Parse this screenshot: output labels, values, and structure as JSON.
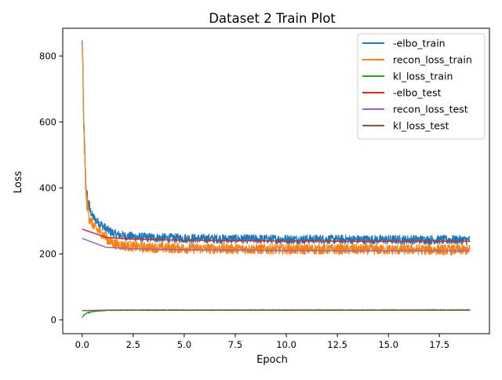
{
  "chart_data": {
    "type": "line",
    "title": "Dataset 2 Train Plot",
    "xlabel": "Epoch",
    "ylabel": "Loss",
    "xlim": [
      -0.95,
      19.95
    ],
    "ylim": [
      -42,
      884
    ],
    "xticks": [
      0.0,
      2.5,
      5.0,
      7.5,
      10.0,
      12.5,
      15.0,
      17.5
    ],
    "xtick_labels": [
      "0.0",
      "2.5",
      "5.0",
      "7.5",
      "10.0",
      "12.5",
      "15.0",
      "17.5"
    ],
    "yticks": [
      0,
      200,
      400,
      600,
      800
    ],
    "ytick_labels": [
      "0",
      "200",
      "400",
      "600",
      "800"
    ],
    "grid": false,
    "legend_position": "top-right",
    "series": [
      {
        "name": "-elbo_train",
        "color": "#1f77b4",
        "noise": 14,
        "x": [
          0,
          0.03,
          0.06,
          0.1,
          0.15,
          0.2,
          0.3,
          0.4,
          0.5,
          0.7,
          1.0,
          1.3,
          1.6,
          2.0,
          2.5,
          3.0,
          4.0,
          5.0,
          6.0,
          8.0,
          10.0,
          12.0,
          14.0,
          16.0,
          19.0
        ],
        "values": [
          840,
          790,
          650,
          560,
          460,
          390,
          350,
          330,
          315,
          300,
          285,
          270,
          260,
          255,
          252,
          250,
          248,
          247,
          246,
          245,
          244,
          244,
          243,
          243,
          242
        ]
      },
      {
        "name": "recon_loss_train",
        "color": "#ff7f0e",
        "noise": 16,
        "x": [
          0,
          0.03,
          0.06,
          0.1,
          0.15,
          0.2,
          0.3,
          0.4,
          0.5,
          0.7,
          1.0,
          1.3,
          1.6,
          2.0,
          2.5,
          3.0,
          4.0,
          5.0,
          6.0,
          8.0,
          10.0,
          12.0,
          14.0,
          16.0,
          19.0
        ],
        "values": [
          845,
          780,
          640,
          540,
          440,
          370,
          330,
          305,
          290,
          275,
          260,
          240,
          230,
          225,
          222,
          220,
          218,
          217,
          216,
          215,
          214,
          214,
          213,
          213,
          212
        ]
      },
      {
        "name": "kl_loss_train",
        "color": "#2ca02c",
        "noise": 1.5,
        "x": [
          0,
          0.05,
          0.1,
          0.2,
          0.4,
          0.6,
          1.0,
          1.5,
          2.0,
          19.0
        ],
        "values": [
          5,
          12,
          15,
          20,
          24,
          26,
          28,
          29,
          29.5,
          30
        ]
      },
      {
        "name": "-elbo_test",
        "color": "#d62728",
        "noise": 0,
        "x": [
          0,
          1.17,
          2.34,
          3.5,
          4.67,
          5.84,
          7.0,
          8.17,
          9.34,
          10.5,
          11.67,
          12.84,
          14.0,
          15.17,
          16.34,
          17.5,
          19.0
        ],
        "values": [
          275,
          250,
          245,
          243,
          242,
          241,
          240,
          240,
          239,
          239,
          239,
          238,
          238,
          238,
          238,
          238,
          238
        ]
      },
      {
        "name": "recon_loss_test",
        "color": "#9467bd",
        "noise": 0,
        "x": [
          0,
          1.17,
          2.34,
          3.5,
          4.67,
          5.84,
          7.0,
          8.17,
          9.34,
          10.5,
          11.67,
          12.84,
          14.0,
          15.17,
          16.34,
          17.5,
          19.0
        ],
        "values": [
          247,
          220,
          216,
          214,
          213,
          212,
          211,
          211,
          210,
          210,
          210,
          209,
          209,
          209,
          209,
          209,
          209
        ]
      },
      {
        "name": "kl_loss_test",
        "color": "#8c564b",
        "noise": 0,
        "x": [
          0,
          1.17,
          2.34,
          3.5,
          4.67,
          5.84,
          7.0,
          8.17,
          9.34,
          10.5,
          11.67,
          12.84,
          14.0,
          15.17,
          16.34,
          17.5,
          19.0
        ],
        "values": [
          28,
          29,
          29,
          29,
          29,
          29,
          29,
          29,
          29,
          29,
          29,
          29,
          29,
          29,
          29,
          29,
          29
        ]
      }
    ]
  }
}
